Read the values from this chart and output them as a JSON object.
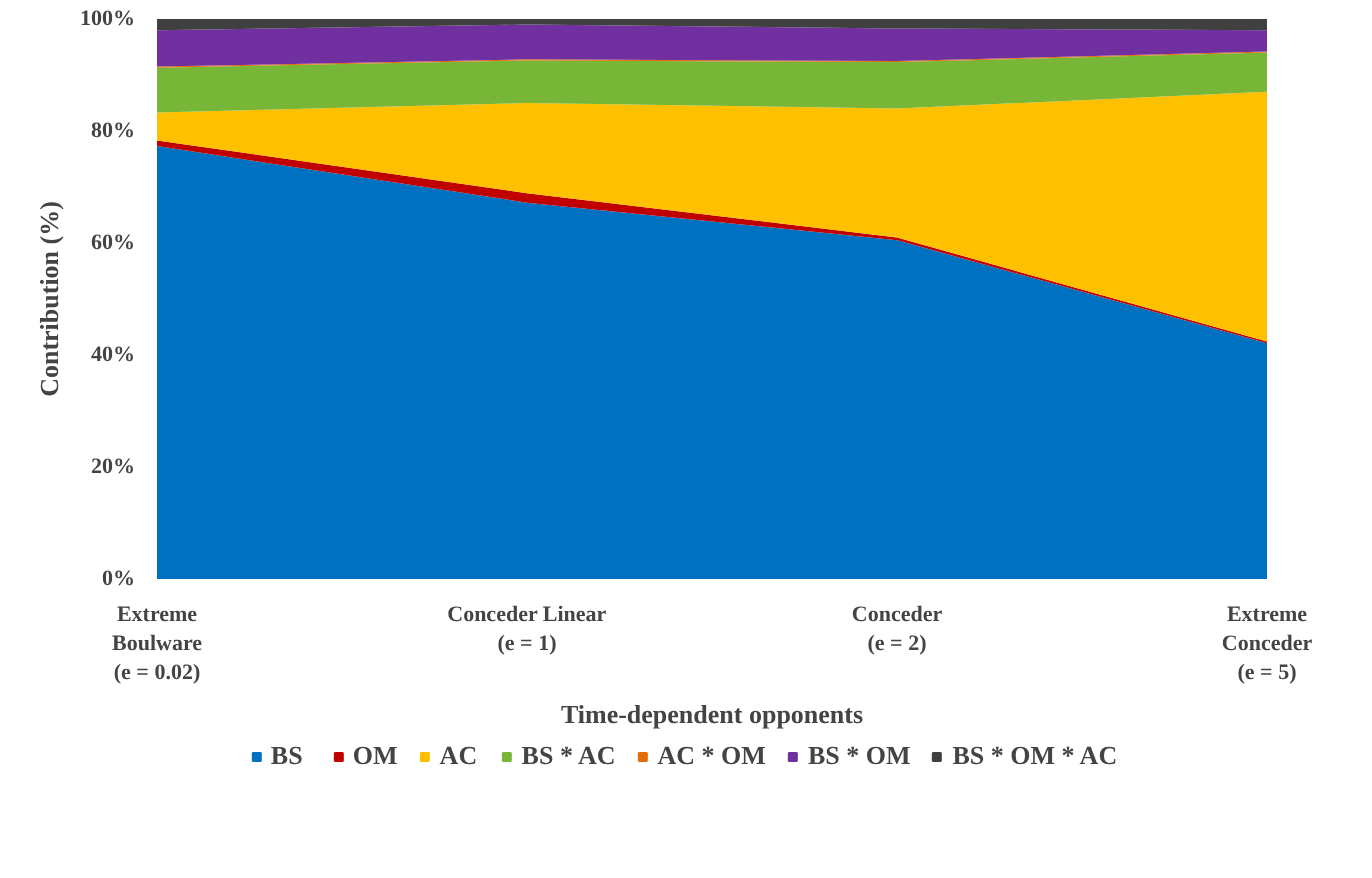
{
  "chart_data": {
    "type": "area",
    "stacked": true,
    "xlabel": "Time-dependent opponents",
    "ylabel": "Contribution (%)",
    "categories": [
      "Extreme\nBoulware\n(e = 0.02)",
      "Conceder Linear\n(e = 1)",
      "Conceder\n(e = 2)",
      "Extreme\nConceder\n(e = 5)"
    ],
    "series": [
      {
        "name": "BS",
        "color": "#0070c0",
        "values": [
          77.3,
          67.2,
          60.5,
          42.1
        ]
      },
      {
        "name": "OM",
        "color": "#c00000",
        "values": [
          1.0,
          1.7,
          0.5,
          0.3
        ]
      },
      {
        "name": "AC",
        "color": "#ffc000",
        "values": [
          5.0,
          16.1,
          23.0,
          44.6
        ]
      },
      {
        "name": "BS * AC",
        "color": "#77b636",
        "values": [
          8.0,
          7.6,
          8.3,
          7.0
        ]
      },
      {
        "name": "AC * OM",
        "color": "#e46c0a",
        "values": [
          0.2,
          0.2,
          0.2,
          0.2
        ]
      },
      {
        "name": "BS * OM",
        "color": "#7030a0",
        "values": [
          6.5,
          6.2,
          5.8,
          3.8
        ]
      },
      {
        "name": "BS * OM * AC",
        "color": "#404040",
        "values": [
          2.0,
          1.0,
          1.7,
          2.0
        ]
      }
    ],
    "ylim": [
      0,
      100
    ],
    "yticks": [
      {
        "value": 0,
        "label": "0%"
      },
      {
        "value": 20,
        "label": "20%"
      },
      {
        "value": 40,
        "label": "40%"
      },
      {
        "value": 60,
        "label": "60%"
      },
      {
        "value": 80,
        "label": "80%"
      },
      {
        "value": 100,
        "label": "100%"
      }
    ],
    "grid": false,
    "legend": "bottom"
  }
}
